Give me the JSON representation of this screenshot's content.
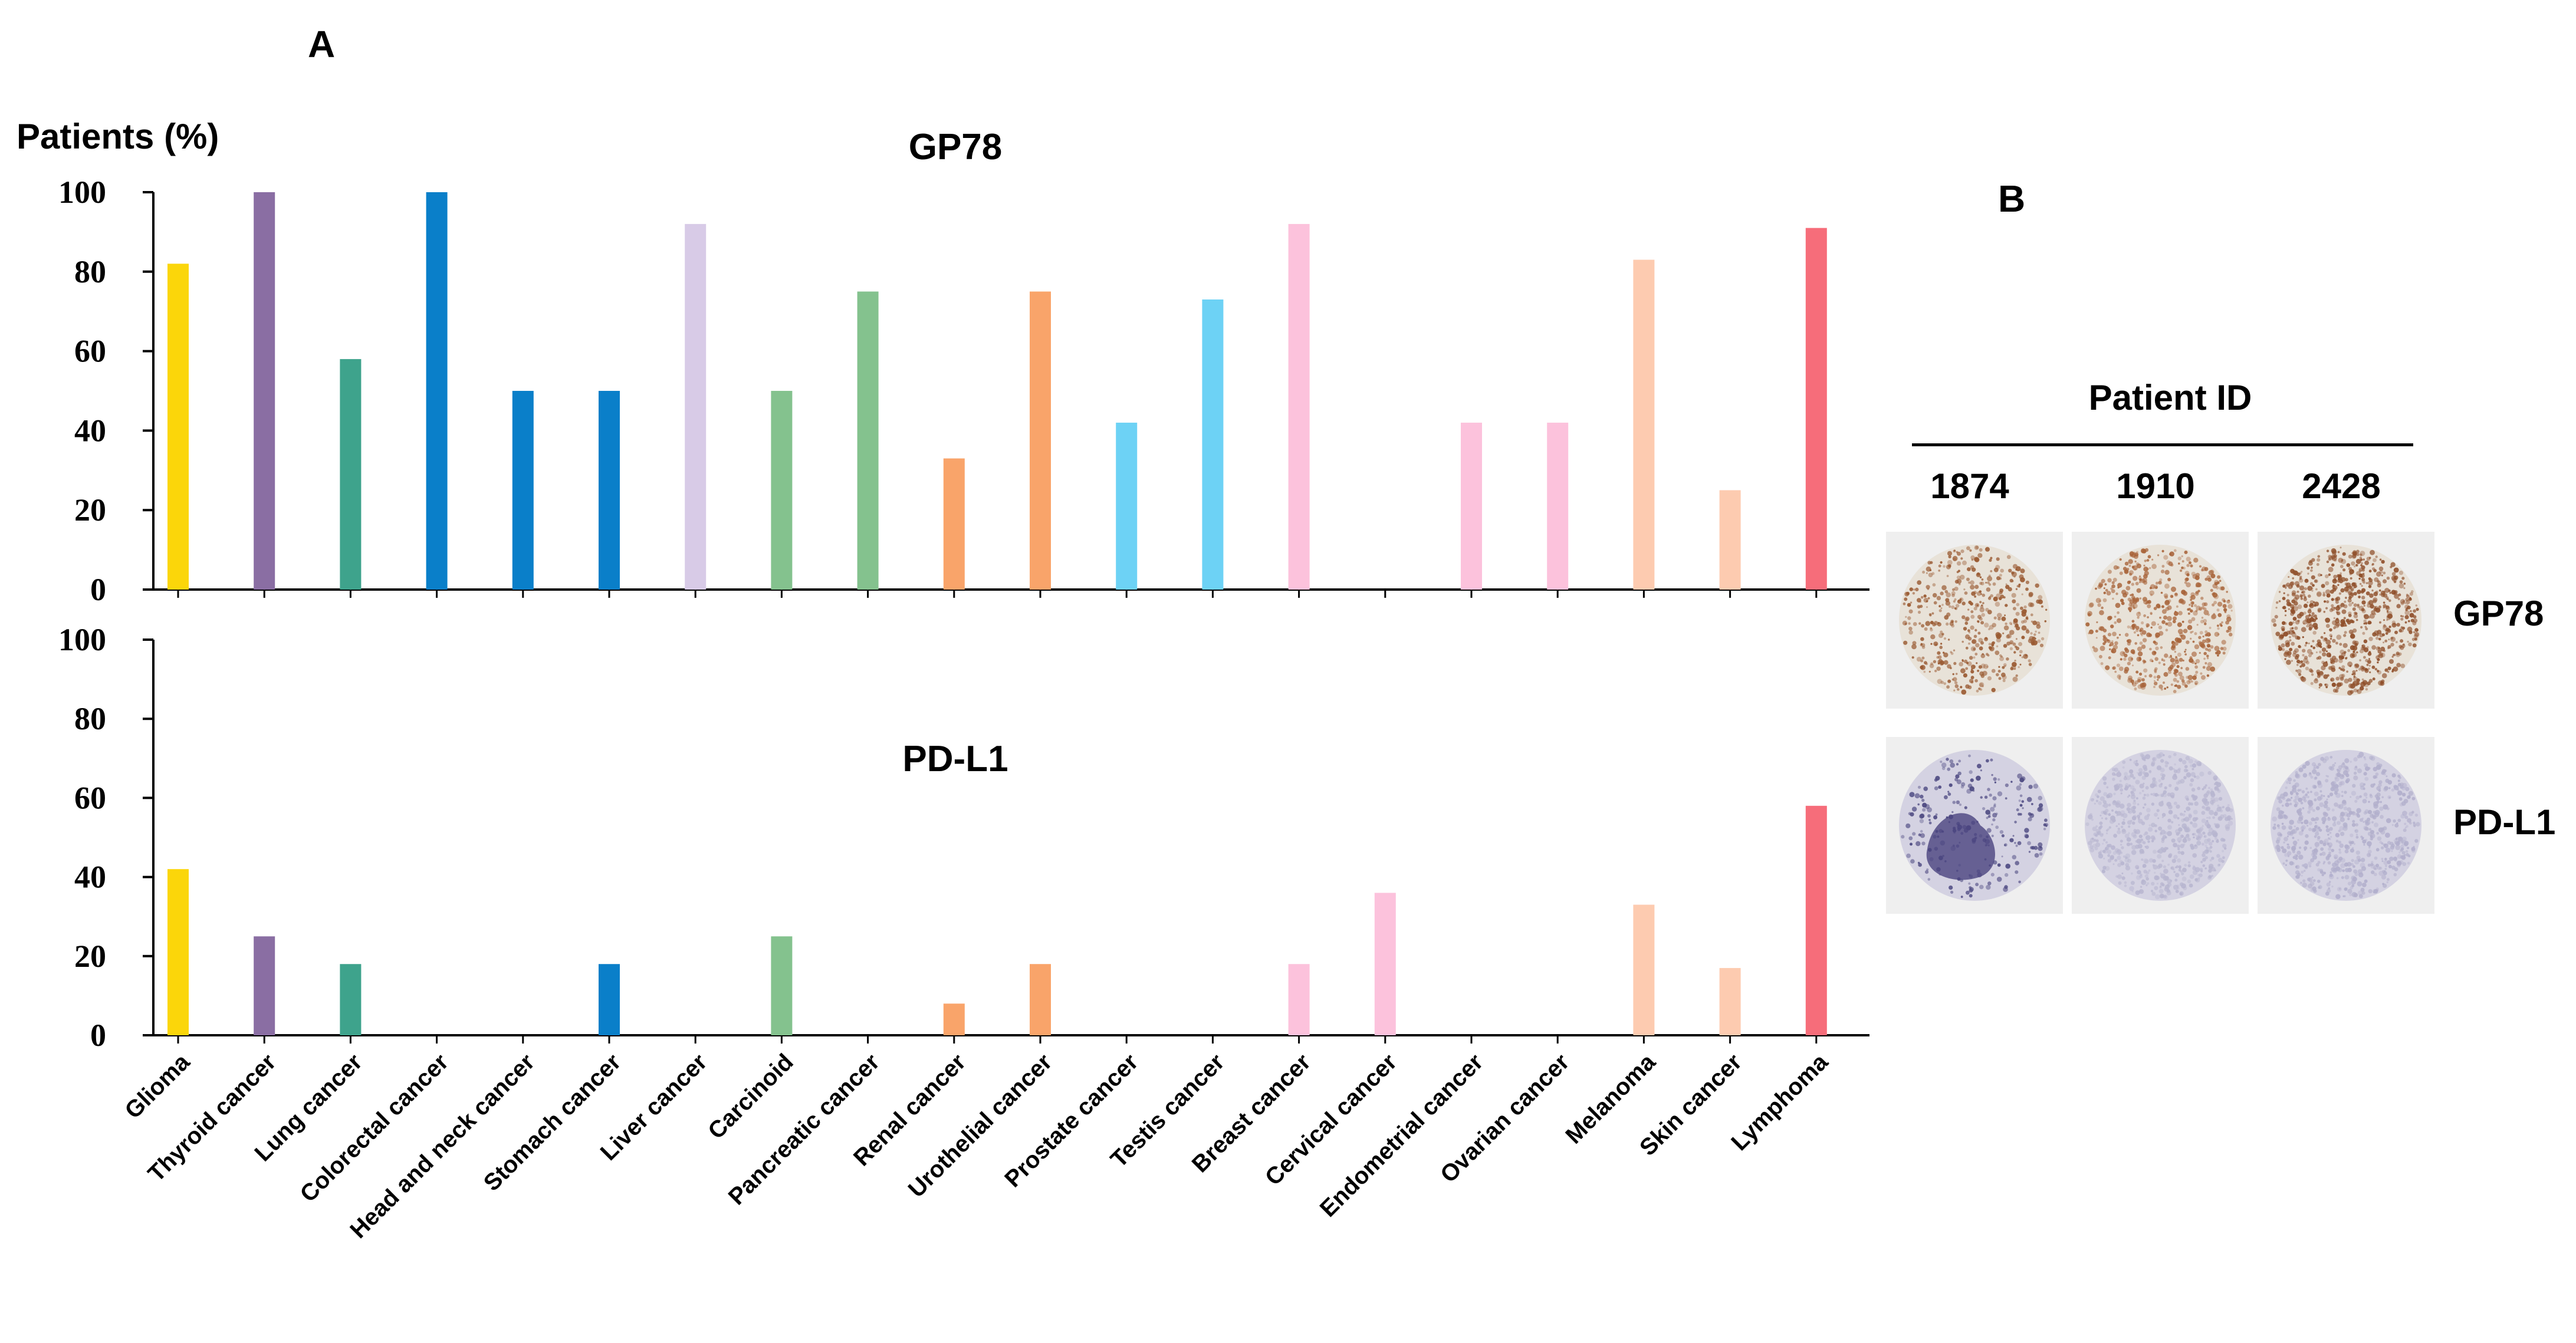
{
  "panel_a": {
    "letter": "A",
    "chart_data": [
      {
        "type": "bar",
        "title": "GP78",
        "ylabel": "Patients (%)",
        "ylim": [
          0,
          100
        ],
        "yticks": [
          0,
          20,
          40,
          60,
          80,
          100
        ],
        "categories": [
          "Glioma",
          "Thyroid cancer",
          "Lung cancer",
          "Colorectal cancer",
          "Head and neck cancer",
          "Stomach  cancer",
          "Liver cancer",
          "Carcinoid",
          "Pancreatic cancer",
          "Renal  cancer",
          "Urothelial  cancer",
          "Prostate cancer",
          "Testis cancer",
          "Breast cancer",
          "Cervical cancer",
          "Endometrial cancer",
          "Ovarian cancer",
          "Melanoma",
          "Skin cancer",
          "Lymphoma"
        ],
        "values": [
          82,
          100,
          58,
          100,
          50,
          50,
          92,
          50,
          75,
          33,
          75,
          42,
          73,
          92,
          0,
          42,
          42,
          83,
          25,
          91
        ],
        "bar_colors": [
          "#fbd60a",
          "#8a6ea3",
          "#3ea38c",
          "#0a7fc9",
          "#0a7fc9",
          "#0a7fc9",
          "#d8cbe7",
          "#84c28e",
          "#84c28e",
          "#f9a46a",
          "#f9a46a",
          "#6dd2f5",
          "#6dd2f5",
          "#fcc2dc",
          "#fcc2dc",
          "#fcc2dc",
          "#fcc2dc",
          "#fdcbb0",
          "#fdcbb0",
          "#f66d7a"
        ]
      },
      {
        "type": "bar",
        "title": "PD-L1",
        "ylabel": "",
        "ylim": [
          0,
          100
        ],
        "yticks": [
          0,
          20,
          40,
          60,
          80,
          100
        ],
        "categories": [
          "Glioma",
          "Thyroid cancer",
          "Lung cancer",
          "Colorectal cancer",
          "Head and neck cancer",
          "Stomach  cancer",
          "Liver cancer",
          "Carcinoid",
          "Pancreatic cancer",
          "Renal  cancer",
          "Urothelial  cancer",
          "Prostate cancer",
          "Testis cancer",
          "Breast cancer",
          "Cervical cancer",
          "Endometrial cancer",
          "Ovarian cancer",
          "Melanoma",
          "Skin cancer",
          "Lymphoma"
        ],
        "values": [
          42,
          25,
          18,
          0,
          0,
          18,
          0,
          25,
          0,
          8,
          18,
          0,
          0,
          18,
          36,
          0,
          0,
          33,
          17,
          58
        ],
        "bar_colors": [
          "#fbd60a",
          "#8a6ea3",
          "#3ea38c",
          "#0a7fc9",
          "#0a7fc9",
          "#0a7fc9",
          "#d8cbe7",
          "#84c28e",
          "#84c28e",
          "#f9a46a",
          "#f9a46a",
          "#6dd2f5",
          "#6dd2f5",
          "#fcc2dc",
          "#fcc2dc",
          "#fcc2dc",
          "#fcc2dc",
          "#fdcbb0",
          "#fdcbb0",
          "#f66d7a"
        ]
      }
    ]
  },
  "panel_b": {
    "letter": "B",
    "header": "Patient ID",
    "patient_ids": [
      "1874",
      "1910",
      "2428"
    ],
    "rows": [
      {
        "label": "GP78",
        "stain_colors": [
          "#9a5a32",
          "#a8643a",
          "#8f4f2a"
        ],
        "background_color": "#e8e2d8"
      },
      {
        "label": "PD-L1",
        "stain_colors": [
          "#4e4a82",
          "#b8b6d0",
          "#b2afcc"
        ],
        "background_color": "#d4d2e2"
      }
    ]
  }
}
